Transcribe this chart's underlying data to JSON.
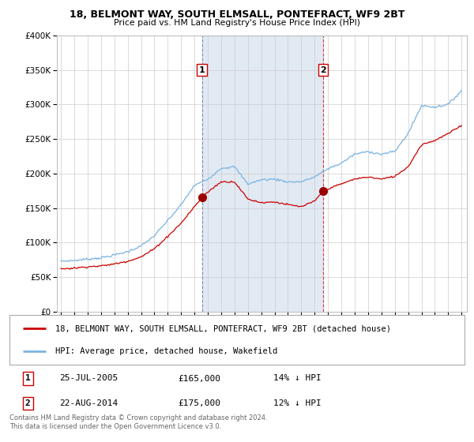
{
  "title": "18, BELMONT WAY, SOUTH ELMSALL, PONTEFRACT, WF9 2BT",
  "subtitle": "Price paid vs. HM Land Registry's House Price Index (HPI)",
  "legend_line1": "18, BELMONT WAY, SOUTH ELMSALL, PONTEFRACT, WF9 2BT (detached house)",
  "legend_line2": "HPI: Average price, detached house, Wakefield",
  "footer": "Contains HM Land Registry data © Crown copyright and database right 2024.\nThis data is licensed under the Open Government Licence v3.0.",
  "sale1_date": "25-JUL-2005",
  "sale1_price": 165000,
  "sale1_label": "14% ↓ HPI",
  "sale2_date": "22-AUG-2014",
  "sale2_price": 175000,
  "sale2_label": "12% ↓ HPI",
  "sale1_x": 2005.57,
  "sale2_x": 2014.64,
  "hpi_color": "#7ab3e0",
  "price_color": "#cc0000",
  "sale_marker_color": "#990000",
  "shading_color": "#dce6f1",
  "vline1_color": "#aaaacc",
  "vline2_color": "#cc4444",
  "grid_color": "#cccccc",
  "background_color": "#ffffff",
  "plot_bg_color": "#ffffff",
  "ylim": [
    0,
    400000
  ],
  "yticks": [
    0,
    50000,
    100000,
    150000,
    200000,
    250000,
    300000,
    350000,
    400000
  ],
  "ytick_labels": [
    "£0",
    "£50K",
    "£100K",
    "£150K",
    "£200K",
    "£250K",
    "£300K",
    "£350K",
    "£400K"
  ],
  "xlim_start": 1994.7,
  "xlim_end": 2025.4,
  "xticks": [
    1995,
    1996,
    1997,
    1998,
    1999,
    2000,
    2001,
    2002,
    2003,
    2004,
    2005,
    2006,
    2007,
    2008,
    2009,
    2010,
    2011,
    2012,
    2013,
    2014,
    2015,
    2016,
    2017,
    2018,
    2019,
    2020,
    2021,
    2022,
    2023,
    2024,
    2025
  ],
  "box_label_color": "#cc0000"
}
